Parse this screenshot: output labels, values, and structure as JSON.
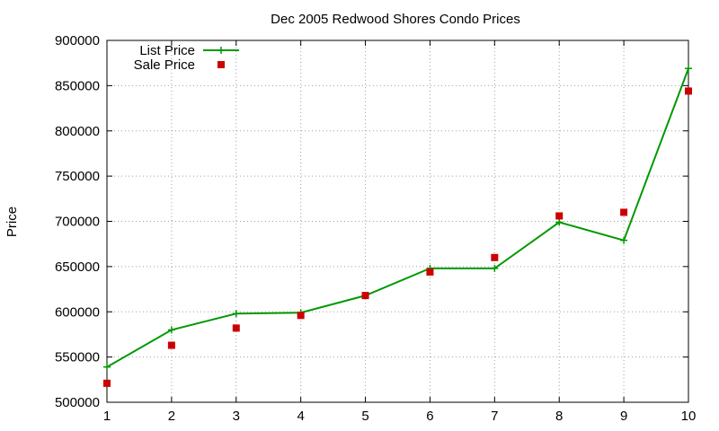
{
  "chart_data": {
    "type": "line",
    "title": "Dec 2005 Redwood Shores Condo Prices",
    "ylabel": "Price",
    "xlabel": "",
    "x": [
      1,
      2,
      3,
      4,
      5,
      6,
      7,
      8,
      9,
      10
    ],
    "xlim": [
      1,
      10
    ],
    "ylim": [
      500000,
      900000
    ],
    "yticks": [
      500000,
      550000,
      600000,
      650000,
      700000,
      750000,
      800000,
      850000,
      900000
    ],
    "xticks": [
      1,
      2,
      3,
      4,
      5,
      6,
      7,
      8,
      9,
      10
    ],
    "grid": true,
    "legend_position": "top-left",
    "series": [
      {
        "name": "List Price",
        "style": "line-with-plus-markers",
        "color": "#009900",
        "values": [
          539000,
          580000,
          598000,
          599000,
          618000,
          648000,
          648000,
          699000,
          679000,
          869000
        ]
      },
      {
        "name": "Sale Price",
        "style": "square-markers",
        "color": "#cc0000",
        "values": [
          521000,
          563000,
          582000,
          596000,
          618000,
          644000,
          660000,
          706000,
          710000,
          844000
        ]
      }
    ]
  }
}
